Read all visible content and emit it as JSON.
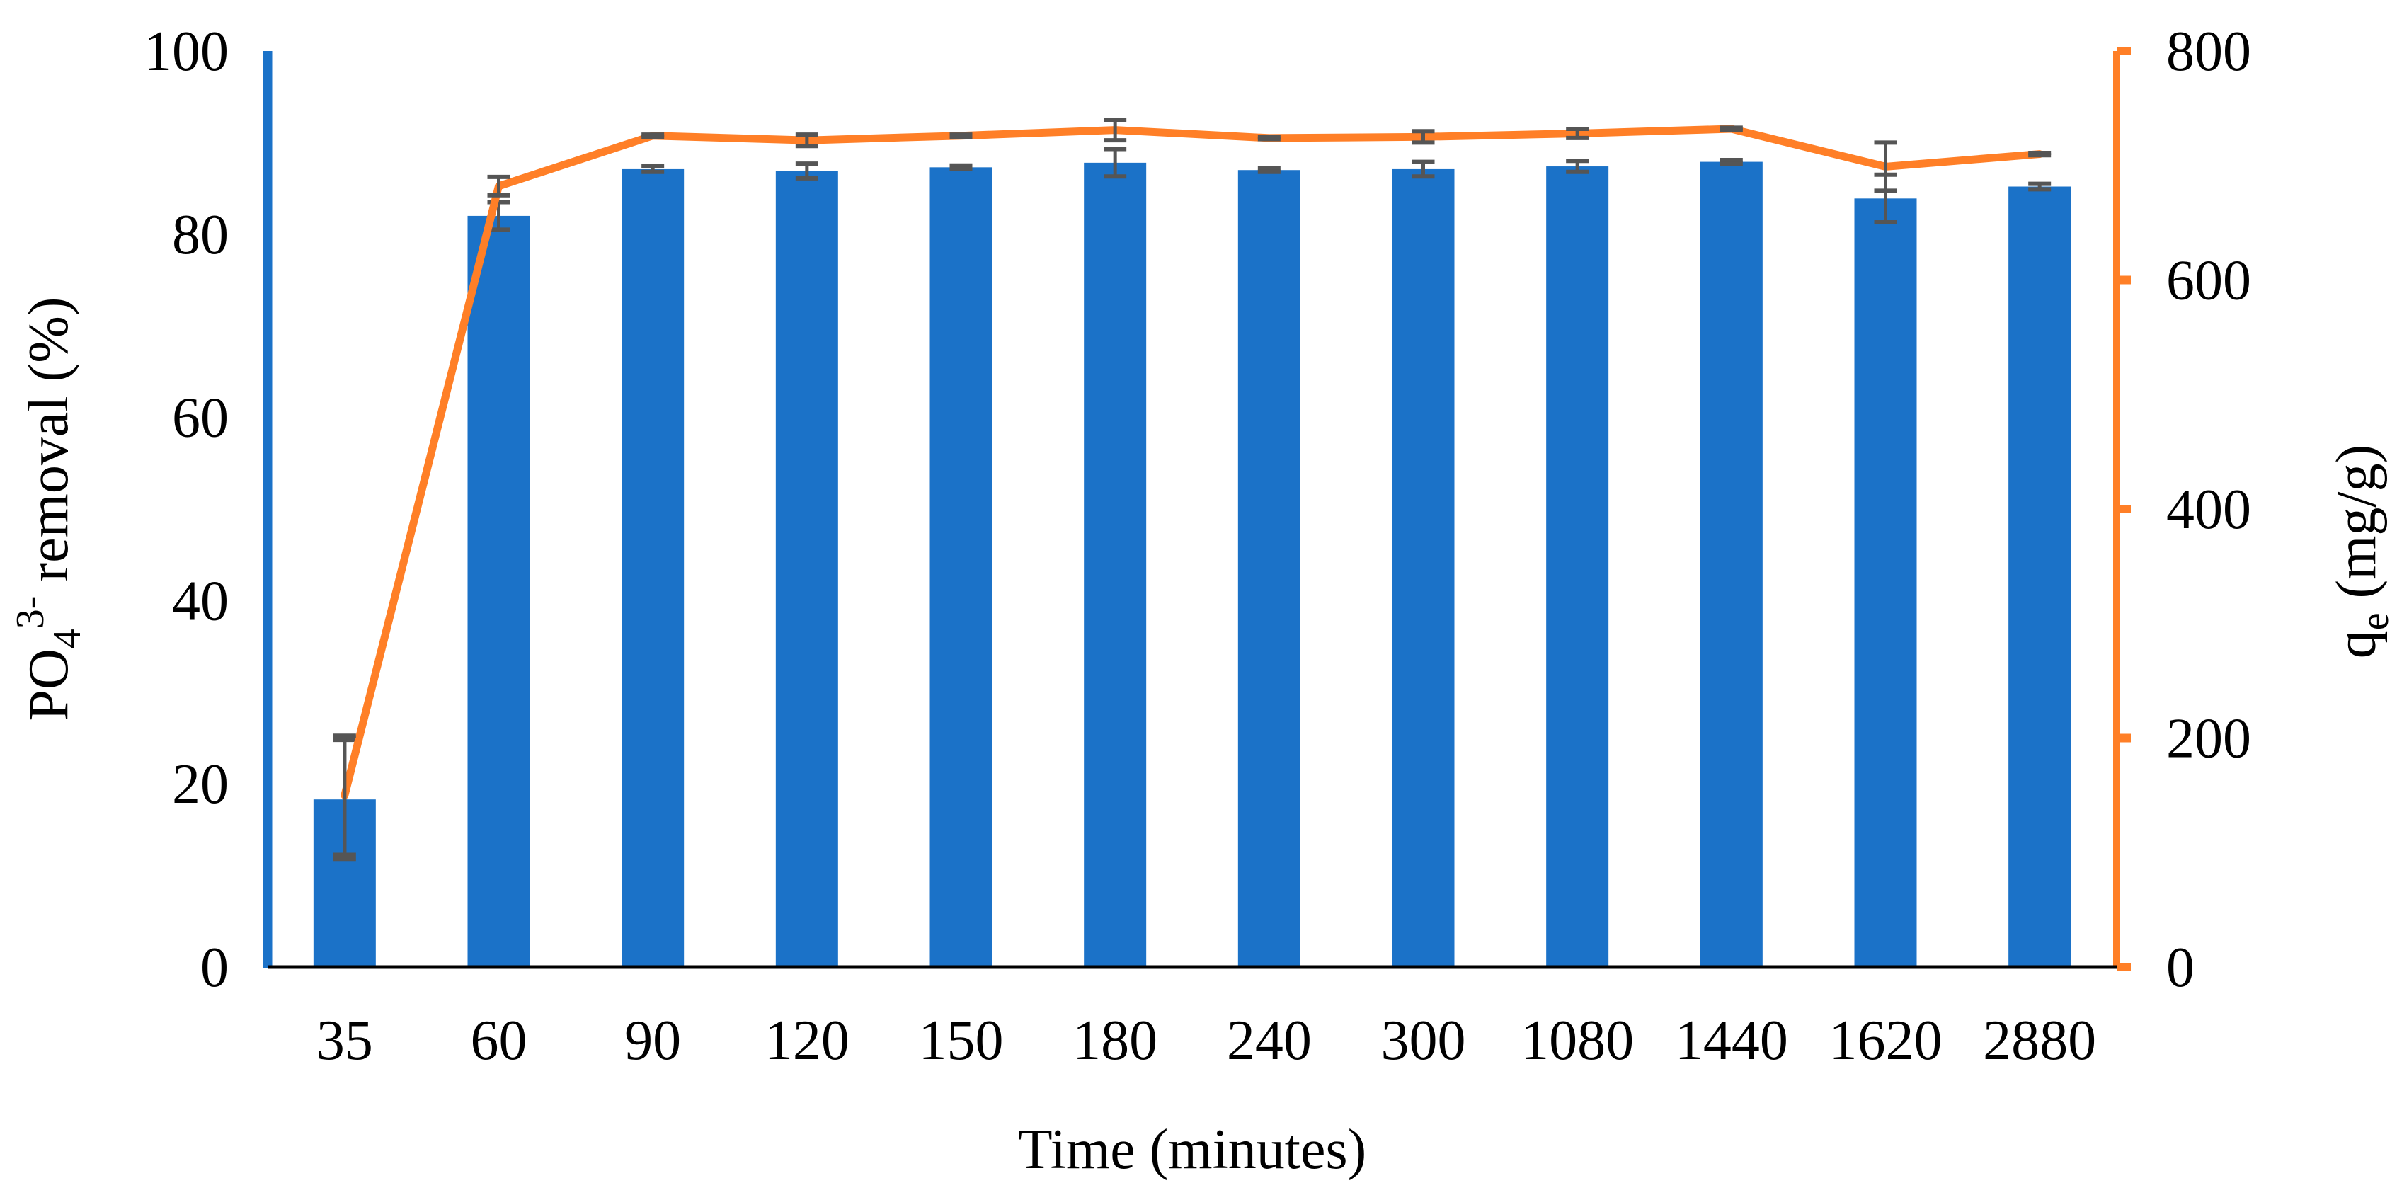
{
  "chart_data": {
    "type": "bar+line",
    "categories": [
      "35",
      "60",
      "90",
      "120",
      "150",
      "180",
      "240",
      "300",
      "1080",
      "1440",
      "1620",
      "2880"
    ],
    "xlabel": "Time (minutes)",
    "ylabel": {
      "prefix": "PO",
      "sub": "4",
      "sup": "3-",
      "suffix": " removal (%)"
    },
    "y2label": {
      "prefix": "q",
      "sub": "e",
      "suffix": " (mg/g)"
    },
    "ylim": [
      0,
      100
    ],
    "y2lim": [
      0,
      800
    ],
    "yticks": [
      "0",
      "20",
      "40",
      "60",
      "80",
      "100"
    ],
    "y2ticks": [
      "0",
      "200",
      "400",
      "600",
      "800"
    ],
    "grid": false,
    "bar_series": {
      "axis": "left",
      "color": "#1B72C8",
      "values": [
        18.3,
        82.0,
        87.1,
        86.9,
        87.3,
        87.8,
        87.0,
        87.1,
        87.4,
        87.9,
        83.9,
        85.2
      ],
      "errors": [
        6.5,
        1.5,
        0.3,
        0.8,
        0.2,
        1.5,
        0.2,
        0.8,
        0.6,
        0.2,
        2.6,
        0.3
      ]
    },
    "line_series": {
      "axis": "right",
      "color": "#FF7F27",
      "values": [
        150,
        682,
        726,
        722,
        726,
        731,
        724,
        725,
        728,
        732,
        699,
        710
      ],
      "errors": [
        52,
        8,
        1,
        5,
        1,
        9,
        1,
        5,
        4,
        1,
        21,
        1
      ]
    },
    "error_bar_color": "#555555",
    "left_axis_color": "#1B72C8",
    "right_axis_color": "#FF7F27"
  }
}
